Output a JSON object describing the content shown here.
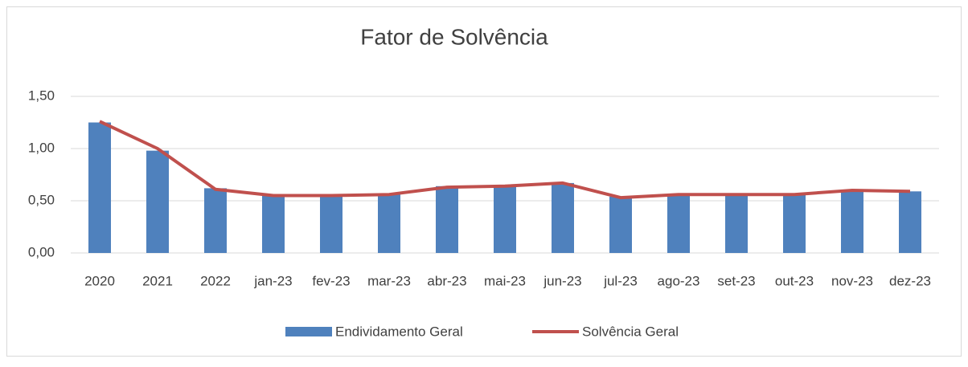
{
  "chart_data": {
    "type": "bar-line",
    "title": "Fator de Solvência",
    "categories": [
      "2020",
      "2021",
      "2022",
      "jan-23",
      "fev-23",
      "mar-23",
      "abr-23",
      "mai-23",
      "jun-23",
      "jul-23",
      "ago-23",
      "set-23",
      "out-23",
      "nov-23",
      "dez-23"
    ],
    "series": [
      {
        "name": "Endividamento Geral",
        "type": "bar",
        "color": "#4f81bd",
        "values": [
          1.25,
          0.98,
          0.62,
          0.56,
          0.55,
          0.56,
          0.64,
          0.64,
          0.67,
          0.54,
          0.56,
          0.56,
          0.56,
          0.6,
          0.59
        ]
      },
      {
        "name": "Solvência Geral",
        "type": "line",
        "color": "#c0504d",
        "values": [
          1.26,
          1.0,
          0.61,
          0.55,
          0.55,
          0.56,
          0.63,
          0.64,
          0.67,
          0.53,
          0.56,
          0.56,
          0.56,
          0.6,
          0.59
        ]
      }
    ],
    "ylim": [
      0,
      1.5
    ],
    "yticks": [
      {
        "value": 0,
        "label": "0,00"
      },
      {
        "value": 0.5,
        "label": "0,50"
      },
      {
        "value": 1,
        "label": "1,00"
      },
      {
        "value": 1.5,
        "label": "1,50"
      }
    ],
    "grid": true,
    "legend": "bottom"
  }
}
